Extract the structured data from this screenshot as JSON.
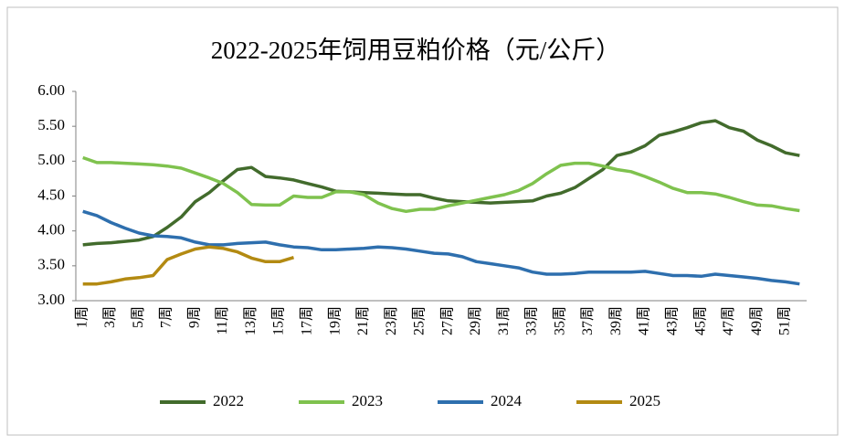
{
  "chart_data": {
    "type": "line",
    "title": "2022-2025年饲用豆粕价格（元/公斤）",
    "categories": [
      "1周",
      null,
      "3周",
      null,
      "5周",
      null,
      "7周",
      null,
      "9周",
      null,
      "11周",
      null,
      "13周",
      null,
      "15周",
      null,
      "17周",
      null,
      "19周",
      null,
      "21周",
      null,
      "23周",
      null,
      "25周",
      null,
      "27周",
      null,
      "29周",
      null,
      "31周",
      null,
      "33周",
      null,
      "35周",
      null,
      "37周",
      null,
      "39周",
      null,
      "41周",
      null,
      "43周",
      null,
      "45周",
      null,
      "47周",
      null,
      "49周",
      null,
      "51周",
      null
    ],
    "ylim": [
      3,
      6
    ],
    "yticks": [
      {
        "value": 3,
        "label": "3.00"
      },
      {
        "value": 3.5,
        "label": "3.50"
      },
      {
        "value": 4,
        "label": "4.00"
      },
      {
        "value": 4.5,
        "label": "4.50"
      },
      {
        "value": 5,
        "label": "5.00"
      },
      {
        "value": 5.5,
        "label": "5.50"
      },
      {
        "value": 6,
        "label": "6.00"
      }
    ],
    "legend": "bottom",
    "series": [
      {
        "name": "2022",
        "color": "#426b2c",
        "values": [
          3.8,
          3.82,
          3.83,
          3.85,
          3.87,
          3.92,
          4.05,
          4.2,
          4.42,
          4.55,
          4.72,
          4.88,
          4.91,
          4.78,
          4.76,
          4.73,
          4.68,
          4.63,
          4.57,
          4.56,
          4.55,
          4.54,
          4.53,
          4.52,
          4.52,
          4.47,
          4.43,
          4.42,
          4.41,
          4.4,
          4.41,
          4.42,
          4.43,
          4.5,
          4.54,
          4.62,
          4.75,
          4.88,
          5.08,
          5.13,
          5.22,
          5.37,
          5.42,
          5.48,
          5.55,
          5.58,
          5.48,
          5.43,
          5.3,
          5.22,
          5.12,
          5.08
        ]
      },
      {
        "name": "2023",
        "color": "#7fc24e",
        "values": [
          5.05,
          4.98,
          4.98,
          4.97,
          4.96,
          4.95,
          4.93,
          4.9,
          4.83,
          4.76,
          4.68,
          4.55,
          4.38,
          4.37,
          4.37,
          4.5,
          4.48,
          4.48,
          4.56,
          4.56,
          4.52,
          4.4,
          4.32,
          4.28,
          4.31,
          4.31,
          4.36,
          4.4,
          4.44,
          4.48,
          4.52,
          4.58,
          4.68,
          4.82,
          4.94,
          4.97,
          4.97,
          4.93,
          4.88,
          4.85,
          4.78,
          4.7,
          4.61,
          4.55,
          4.55,
          4.53,
          4.48,
          4.42,
          4.37,
          4.36,
          4.32,
          4.29
        ]
      },
      {
        "name": "2024",
        "color": "#2e6fae",
        "values": [
          4.28,
          4.22,
          4.12,
          4.04,
          3.97,
          3.93,
          3.92,
          3.9,
          3.84,
          3.8,
          3.8,
          3.82,
          3.83,
          3.84,
          3.8,
          3.77,
          3.76,
          3.73,
          3.73,
          3.74,
          3.75,
          3.77,
          3.76,
          3.74,
          3.71,
          3.68,
          3.67,
          3.63,
          3.56,
          3.53,
          3.5,
          3.47,
          3.41,
          3.38,
          3.38,
          3.39,
          3.41,
          3.41,
          3.41,
          3.41,
          3.42,
          3.39,
          3.36,
          3.36,
          3.35,
          3.38,
          3.36,
          3.34,
          3.32,
          3.29,
          3.27,
          3.24
        ]
      },
      {
        "name": "2025",
        "color": "#b38a12",
        "values": [
          3.24,
          3.24,
          3.27,
          3.31,
          3.33,
          3.36,
          3.59,
          3.67,
          3.74,
          3.77,
          3.75,
          3.7,
          3.61,
          3.56,
          3.56,
          3.62,
          null,
          null,
          null,
          null,
          null,
          null,
          null,
          null,
          null,
          null,
          null,
          null,
          null,
          null,
          null,
          null,
          null,
          null,
          null,
          null,
          null,
          null,
          null,
          null,
          null,
          null,
          null,
          null,
          null,
          null,
          null,
          null,
          null,
          null,
          null,
          null
        ]
      }
    ]
  }
}
